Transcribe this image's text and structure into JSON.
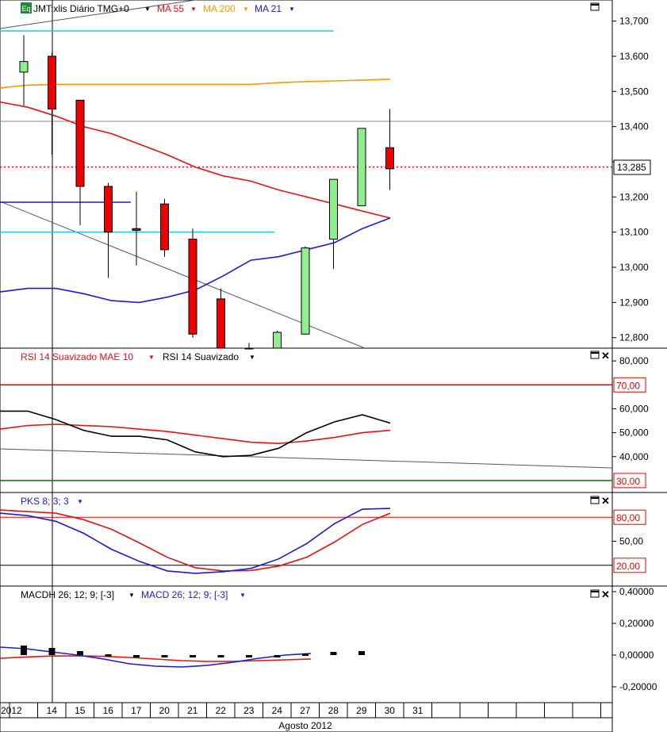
{
  "colors": {
    "up": "#90ee90",
    "down": "#ee0000",
    "ma55": "#e81010",
    "ma200": "#ff9900",
    "ma21": "#1a1ad8",
    "cyan": "#22c6d8",
    "rsi": "#000000",
    "rsi_mae": "#e81010",
    "pks_k": "#1a1ad8",
    "pks_d": "#e81010",
    "macd": "#1a1ad8",
    "macd_signal": "#e81010",
    "level_70": "#dd0000",
    "level_30": "#007700"
  },
  "chart_data": [
    {
      "type": "candlestick",
      "legend": {
        "badge": "Eq",
        "symbol": "JMT:xlis Diário TMG+0",
        "ma55": "MA 55",
        "ma200": "MA 200",
        "ma21": "MA 21"
      },
      "ylim": [
        12770,
        13760
      ],
      "yticks": [
        13700,
        13600,
        13500,
        13400,
        13300,
        13200,
        13100,
        13000,
        12900,
        12800
      ],
      "ytick_labels": [
        "13,700",
        "13,600",
        "13,500",
        "13,400",
        "",
        "13,200",
        "13,100",
        "13,000",
        "12,900",
        "12,800"
      ],
      "last_price": 13285,
      "last_price_label": "13,285",
      "hline": 13415,
      "candles": [
        {
          "x": "13",
          "o": 13555,
          "h": 13660,
          "l": 13460,
          "c": 13585
        },
        {
          "x": "14",
          "o": 13600,
          "h": 13610,
          "l": 13320,
          "c": 13450
        },
        {
          "x": "15",
          "o": 13475,
          "h": 13475,
          "l": 13120,
          "c": 13230
        },
        {
          "x": "16",
          "o": 13230,
          "h": 13240,
          "l": 12970,
          "c": 13100
        },
        {
          "x": "17",
          "o": 13110,
          "h": 13215,
          "l": 13005,
          "c": 13105
        },
        {
          "x": "20",
          "o": 13180,
          "h": 13195,
          "l": 13030,
          "c": 13050
        },
        {
          "x": "21",
          "o": 13080,
          "h": 13110,
          "l": 12800,
          "c": 12810
        },
        {
          "x": "22",
          "o": 12910,
          "h": 12940,
          "l": 12770,
          "c": 12770
        },
        {
          "x": "23",
          "o": 12770,
          "h": 12785,
          "l": 12770,
          "c": 12770
        },
        {
          "x": "24",
          "o": 12770,
          "h": 12820,
          "l": 12770,
          "c": 12815
        },
        {
          "x": "27",
          "o": 12810,
          "h": 13060,
          "l": 12810,
          "c": 13055
        },
        {
          "x": "28",
          "o": 13080,
          "h": 13250,
          "l": 12995,
          "c": 13250
        },
        {
          "x": "29",
          "o": 13175,
          "h": 13395,
          "l": 13175,
          "c": 13395
        },
        {
          "x": "30",
          "o": 13340,
          "h": 13450,
          "l": 13220,
          "c": 13280
        }
      ],
      "ma55": [
        13470,
        13455,
        13430,
        13400,
        13380,
        13350,
        13320,
        13285,
        13260,
        13245,
        13220,
        13200,
        13180,
        13160,
        13140
      ],
      "ma200": [
        13510,
        13518,
        13520,
        13520,
        13520,
        13520,
        13520,
        13520,
        13520,
        13520,
        13525,
        13528,
        13530,
        13532,
        13535
      ],
      "ma21": [
        12930,
        12940,
        12940,
        12925,
        12905,
        12900,
        12915,
        12935,
        12975,
        13020,
        13030,
        13050,
        13070,
        13110,
        13140
      ],
      "cyan_lines": [
        {
          "value": 13672,
          "from": 0,
          "to": 11
        },
        {
          "value": 13100,
          "from": 0,
          "to": 8.9
        }
      ],
      "blue_segment": {
        "value": 13185,
        "from": 0,
        "to": 3.8
      }
    },
    {
      "type": "line",
      "legend": {
        "mae": "RSI 14 Suavizado MAE 10",
        "rsi": "RSI 14 Suavizado"
      },
      "ylim": [
        25,
        85
      ],
      "yticks": [
        80,
        60,
        50,
        40
      ],
      "ytick_labels": [
        "80,000",
        "60,000",
        "50,000",
        "40,000"
      ],
      "levels": [
        {
          "value": 70,
          "label": "70,00"
        },
        {
          "value": 30,
          "label": "30,00"
        }
      ],
      "rsi": [
        59,
        59,
        55.5,
        51,
        48.5,
        48.5,
        47,
        42,
        40,
        40.5,
        43.5,
        50,
        54.5,
        57.5,
        54
      ],
      "mae": [
        51.5,
        53,
        53.5,
        53,
        52.5,
        51.5,
        50.5,
        49,
        47.5,
        46,
        45.5,
        46.5,
        48,
        50,
        51
      ]
    },
    {
      "type": "line",
      "legend": {
        "pks": "PKS 8; 3; 3"
      },
      "ylim": [
        0,
        100
      ],
      "yticks": [
        50
      ],
      "ytick_labels": [
        "50,00"
      ],
      "levels": [
        {
          "value": 80,
          "label": "80,00"
        },
        {
          "value": 20,
          "label": "20,00"
        }
      ],
      "k": [
        85,
        82,
        75,
        60,
        40,
        25,
        13,
        10,
        12,
        16,
        28,
        47,
        72,
        90,
        91
      ],
      "d": [
        89,
        87,
        85,
        77,
        65,
        48,
        30,
        17,
        13,
        13.5,
        19,
        30,
        49,
        71,
        85
      ]
    },
    {
      "type": "bar+line",
      "legend": {
        "macdh": "MACDH 26; 12; 9; [-3]",
        "macd": "MACD 26; 12; 9; [-3]"
      },
      "ylim": [
        -0.3,
        0.43
      ],
      "yticks": [
        0.4,
        0.2,
        0,
        -0.2
      ],
      "ytick_labels": [
        "0,40000",
        "0,20000",
        "0,00000",
        "-0,20000"
      ],
      "macd": [
        0.05,
        0.04,
        0.02,
        0.0,
        -0.025,
        -0.055,
        -0.07,
        -0.075,
        -0.065,
        -0.045,
        -0.02,
        0.0,
        0.01
      ],
      "signal": [
        -0.02,
        -0.012,
        -0.006,
        -0.005,
        -0.008,
        -0.015,
        -0.025,
        -0.035,
        -0.04,
        -0.04,
        -0.035,
        -0.03,
        -0.025
      ],
      "histogram": [
        0.06,
        0.045,
        0.025,
        0.005,
        -0.005,
        -0.01,
        -0.015,
        -0.015,
        -0.01,
        -0.002,
        0.01,
        0.02,
        0.025
      ]
    }
  ],
  "x_axis": {
    "labels": [
      "2012",
      "14",
      "15",
      "16",
      "17",
      "20",
      "21",
      "22",
      "23",
      "24",
      "27",
      "28",
      "29",
      "30",
      "31",
      "",
      "",
      "",
      "",
      "",
      "",
      ""
    ],
    "month_label": "Agosto 2012"
  }
}
